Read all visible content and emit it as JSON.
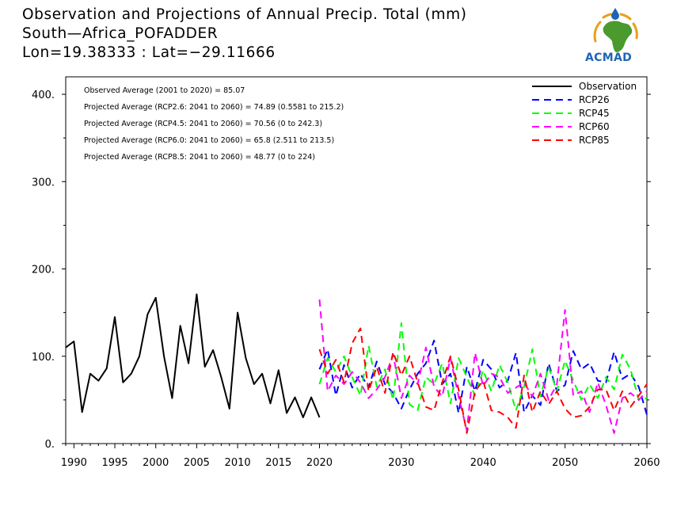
{
  "header": {
    "title_line1": "Observation and Projections of Annual Precip. Total (mm)",
    "title_line2": "South—Africa_POFADDER",
    "title_line3": "Lon=19.38333 : Lat=−29.11666"
  },
  "logo": {
    "text": "ACMAD"
  },
  "chart_data": {
    "type": "line",
    "xlim": [
      1989,
      2060
    ],
    "ylim": [
      0,
      420
    ],
    "x_ticks": [
      1990,
      1995,
      2000,
      2005,
      2010,
      2015,
      2020,
      2030,
      2040,
      2050,
      2060
    ],
    "y_ticks": [
      0,
      100,
      200,
      300,
      400
    ],
    "y_tick_labels": [
      "0.",
      "100.",
      "200.",
      "300.",
      "400."
    ],
    "annotations": [
      "Observed Average (2001 to 2020) = 85.07",
      "Projected Average (RCP2.6: 2041 to 2060) = 74.89 (0.5581 to 215.2)",
      "Projected Average (RCP4.5: 2041 to 2060) = 70.56 (0 to 242.3)",
      "Projected Average (RCP6.0: 2041 to 2060) = 65.8 (2.511 to 213.5)",
      "Projected Average (RCP8.5: 2041 to 2060) = 48.77 (0 to 224)"
    ],
    "legend": {
      "placement": "top-right"
    },
    "series": [
      {
        "name": "Observation",
        "color": "#000000",
        "dash": "solid",
        "x": [
          1989,
          1990,
          1991,
          1992,
          1993,
          1994,
          1995,
          1996,
          1997,
          1998,
          1999,
          2000,
          2001,
          2002,
          2003,
          2004,
          2005,
          2006,
          2007,
          2008,
          2009,
          2010,
          2011,
          2012,
          2013,
          2014,
          2015,
          2016,
          2017,
          2018,
          2019,
          2020
        ],
        "values": [
          110,
          117,
          36,
          80,
          72,
          86,
          145,
          70,
          80,
          100,
          148,
          167,
          100,
          52,
          135,
          92,
          171,
          88,
          107,
          76,
          40,
          150,
          98,
          68,
          80,
          46,
          84,
          35,
          53,
          30,
          53,
          30
        ]
      },
      {
        "name": "RCP26",
        "color": "#0000ff",
        "dash": "dashed",
        "x": [
          2020,
          2021,
          2022,
          2023,
          2024,
          2025,
          2026,
          2027,
          2028,
          2029,
          2030,
          2031,
          2032,
          2033,
          2034,
          2035,
          2036,
          2037,
          2038,
          2039,
          2040,
          2041,
          2042,
          2043,
          2044,
          2045,
          2046,
          2047,
          2048,
          2049,
          2050,
          2051,
          2052,
          2053,
          2054,
          2055,
          2056,
          2057,
          2058,
          2059,
          2060
        ],
        "values": [
          85,
          108,
          55,
          90,
          64,
          80,
          64,
          94,
          68,
          58,
          40,
          62,
          80,
          92,
          118,
          68,
          80,
          35,
          88,
          60,
          96,
          85,
          64,
          72,
          104,
          36,
          55,
          44,
          92,
          60,
          67,
          106,
          85,
          92,
          72,
          70,
          105,
          74,
          80,
          65,
          33
        ]
      },
      {
        "name": "RCP45",
        "color": "#00ff00",
        "dash": "dashed",
        "x": [
          2020,
          2021,
          2022,
          2023,
          2024,
          2025,
          2026,
          2027,
          2028,
          2029,
          2030,
          2031,
          2032,
          2033,
          2034,
          2035,
          2036,
          2037,
          2038,
          2039,
          2040,
          2041,
          2042,
          2043,
          2044,
          2045,
          2046,
          2047,
          2048,
          2049,
          2050,
          2051,
          2052,
          2053,
          2054,
          2055,
          2056,
          2057,
          2058,
          2059,
          2060
        ],
        "values": [
          68,
          98,
          82,
          100,
          76,
          55,
          112,
          65,
          85,
          50,
          138,
          45,
          38,
          76,
          68,
          92,
          46,
          98,
          76,
          55,
          84,
          60,
          90,
          70,
          38,
          65,
          108,
          54,
          88,
          60,
          95,
          72,
          50,
          68,
          52,
          76,
          62,
          102,
          85,
          50,
          52
        ]
      },
      {
        "name": "RCP60",
        "color": "#ff00ff",
        "dash": "dashed",
        "x": [
          2020,
          2021,
          2022,
          2023,
          2024,
          2025,
          2026,
          2027,
          2028,
          2029,
          2030,
          2031,
          2032,
          2033,
          2034,
          2035,
          2036,
          2037,
          2038,
          2039,
          2040,
          2041,
          2042,
          2043,
          2044,
          2045,
          2046,
          2047,
          2048,
          2049,
          2050,
          2051,
          2052,
          2053,
          2054,
          2055,
          2056,
          2057,
          2058,
          2059,
          2060
        ],
        "values": [
          165,
          60,
          78,
          68,
          82,
          70,
          52,
          62,
          76,
          102,
          52,
          78,
          68,
          110,
          65,
          54,
          98,
          54,
          15,
          104,
          66,
          80,
          76,
          58,
          64,
          70,
          54,
          80,
          50,
          68,
          153,
          55,
          60,
          36,
          70,
          44,
          12,
          52,
          58,
          50,
          60
        ]
      },
      {
        "name": "RCP85",
        "color": "#ff0000",
        "dash": "dashed",
        "x": [
          2020,
          2021,
          2022,
          2023,
          2024,
          2025,
          2026,
          2027,
          2028,
          2029,
          2030,
          2031,
          2032,
          2033,
          2034,
          2035,
          2036,
          2037,
          2038,
          2039,
          2040,
          2041,
          2042,
          2043,
          2044,
          2045,
          2046,
          2047,
          2048,
          2049,
          2050,
          2051,
          2052,
          2053,
          2054,
          2055,
          2056,
          2057,
          2058,
          2059,
          2060
        ],
        "values": [
          108,
          80,
          96,
          70,
          115,
          132,
          60,
          88,
          58,
          105,
          78,
          100,
          70,
          42,
          38,
          70,
          100,
          62,
          12,
          60,
          72,
          38,
          36,
          30,
          18,
          78,
          36,
          60,
          45,
          60,
          40,
          30,
          32,
          42,
          62,
          62,
          38,
          60,
          42,
          55,
          68
        ]
      }
    ]
  }
}
